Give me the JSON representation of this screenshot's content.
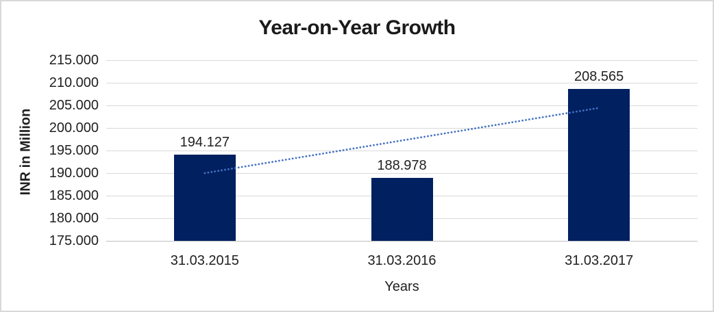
{
  "chart_data": {
    "type": "bar",
    "title": "Year-on-Year Growth",
    "xlabel": "Years",
    "ylabel": "INR in Million",
    "categories": [
      "31.03.2015",
      "31.03.2016",
      "31.03.2017"
    ],
    "values": [
      194.127,
      188.978,
      208.565
    ],
    "data_labels": [
      "194.127",
      "188.978",
      "208.565"
    ],
    "ylim": [
      175,
      215
    ],
    "yticks": [
      {
        "value": 215,
        "label": "215.000"
      },
      {
        "value": 210,
        "label": "210.000"
      },
      {
        "value": 205,
        "label": "205.000"
      },
      {
        "value": 200,
        "label": "200.000"
      },
      {
        "value": 195,
        "label": "195.000"
      },
      {
        "value": 190,
        "label": "190.000"
      },
      {
        "value": 185,
        "label": "185.000"
      },
      {
        "value": 180,
        "label": "180.000"
      },
      {
        "value": 175,
        "label": "175.000"
      }
    ],
    "grid": true,
    "legend": "none",
    "trendline": {
      "style": "dotted",
      "start_value": 190.0,
      "end_value": 204.44
    },
    "colors": {
      "bar": "#002060",
      "trendline": "#4472C4",
      "gridline": "#D9D9D9",
      "axis_line": "#BFBFBF",
      "text": "#1f1f1f",
      "border": "#D8D8D8",
      "background": "#FFFFFF"
    }
  }
}
